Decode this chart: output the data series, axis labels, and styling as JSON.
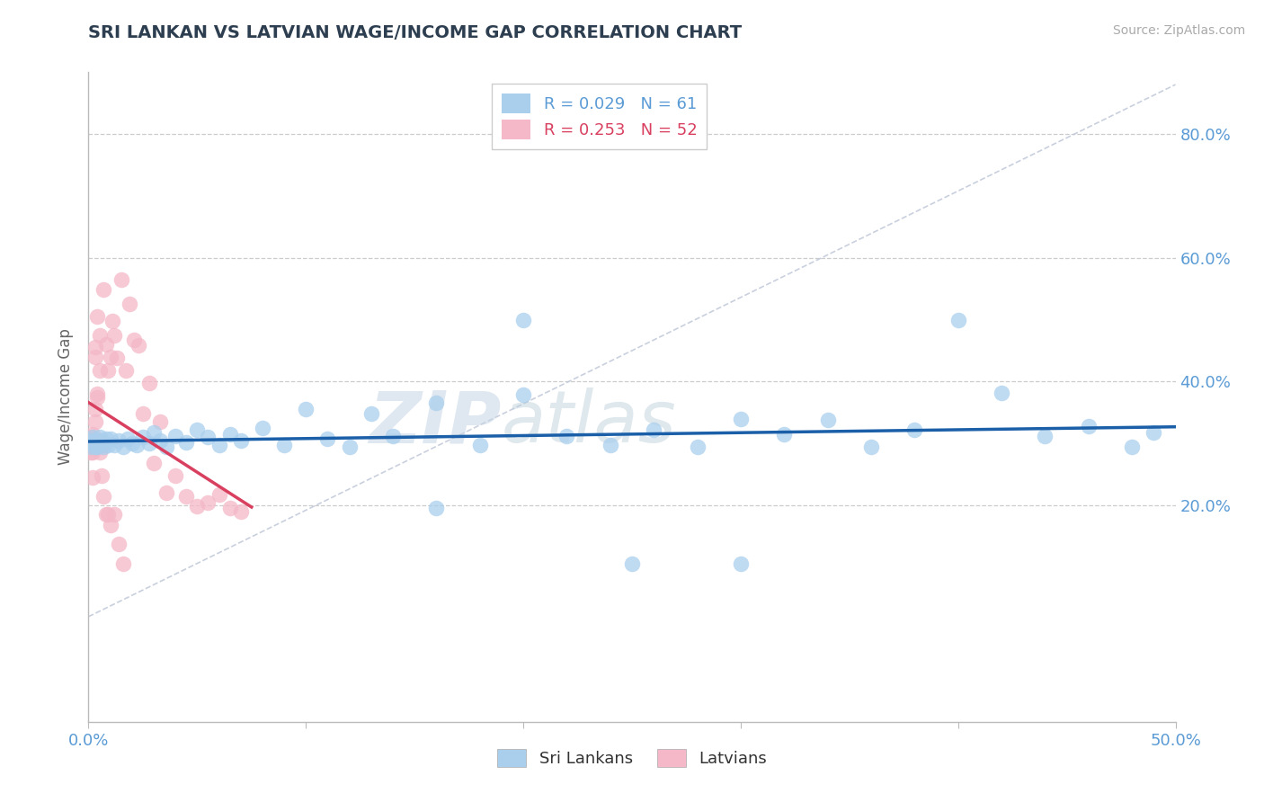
{
  "title": "SRI LANKAN VS LATVIAN WAGE/INCOME GAP CORRELATION CHART",
  "source": "Source: ZipAtlas.com",
  "ylabel": "Wage/Income Gap",
  "xlim": [
    0.0,
    0.5
  ],
  "ylim": [
    -0.15,
    0.9
  ],
  "xticks": [
    0.0,
    0.1,
    0.2,
    0.3,
    0.4,
    0.5
  ],
  "xticklabels": [
    "0.0%",
    "",
    "",
    "",
    "",
    "50.0%"
  ],
  "yticks": [
    0.2,
    0.4,
    0.6,
    0.8
  ],
  "yticklabels": [
    "20.0%",
    "40.0%",
    "60.0%",
    "80.0%"
  ],
  "axis_color": "#5b9bd5",
  "title_color": "#2d3e50",
  "grid_color": "#cccccc",
  "sri_lankans_color": "#aacfed",
  "latvians_color": "#f4b8c8",
  "sri_lankans_line_color": "#1a5fa8",
  "latvians_line_color": "#d94060",
  "watermark_color": "#c8d8ea",
  "legend_r1": "R = 0.029",
  "legend_n1": "N = 61",
  "legend_r2": "R = 0.253",
  "legend_n2": "N = 52",
  "sri_lankans_label": "Sri Lankans",
  "latvians_label": "Latvians",
  "sri_lankans_x": [
    0.001,
    0.001,
    0.002,
    0.002,
    0.003,
    0.003,
    0.004,
    0.004,
    0.005,
    0.006,
    0.007,
    0.008,
    0.009,
    0.01,
    0.012,
    0.014,
    0.016,
    0.018,
    0.02,
    0.022,
    0.025,
    0.028,
    0.03,
    0.033,
    0.036,
    0.04,
    0.045,
    0.05,
    0.055,
    0.06,
    0.065,
    0.07,
    0.08,
    0.09,
    0.1,
    0.11,
    0.12,
    0.13,
    0.14,
    0.16,
    0.18,
    0.2,
    0.22,
    0.24,
    0.26,
    0.28,
    0.3,
    0.32,
    0.34,
    0.36,
    0.38,
    0.4,
    0.42,
    0.44,
    0.46,
    0.48,
    0.49,
    0.2,
    0.3,
    0.16,
    0.25
  ],
  "sri_lankans_y": [
    0.305,
    0.295,
    0.31,
    0.3,
    0.295,
    0.305,
    0.3,
    0.295,
    0.31,
    0.305,
    0.295,
    0.308,
    0.298,
    0.308,
    0.298,
    0.305,
    0.295,
    0.308,
    0.3,
    0.298,
    0.31,
    0.3,
    0.318,
    0.305,
    0.295,
    0.312,
    0.302,
    0.322,
    0.31,
    0.298,
    0.315,
    0.305,
    0.325,
    0.298,
    0.355,
    0.308,
    0.295,
    0.348,
    0.312,
    0.365,
    0.298,
    0.378,
    0.312,
    0.298,
    0.322,
    0.295,
    0.34,
    0.315,
    0.338,
    0.295,
    0.322,
    0.5,
    0.382,
    0.312,
    0.328,
    0.295,
    0.318,
    0.5,
    0.105,
    0.195,
    0.105
  ],
  "latvians_x": [
    0.001,
    0.001,
    0.001,
    0.001,
    0.002,
    0.002,
    0.002,
    0.002,
    0.003,
    0.003,
    0.003,
    0.004,
    0.004,
    0.005,
    0.005,
    0.006,
    0.007,
    0.008,
    0.009,
    0.01,
    0.011,
    0.012,
    0.013,
    0.015,
    0.017,
    0.019,
    0.021,
    0.023,
    0.025,
    0.028,
    0.03,
    0.033,
    0.036,
    0.04,
    0.045,
    0.05,
    0.055,
    0.06,
    0.065,
    0.07,
    0.002,
    0.003,
    0.004,
    0.005,
    0.006,
    0.007,
    0.008,
    0.009,
    0.01,
    0.012,
    0.014,
    0.016
  ],
  "latvians_y": [
    0.305,
    0.295,
    0.31,
    0.285,
    0.305,
    0.295,
    0.315,
    0.285,
    0.455,
    0.44,
    0.355,
    0.505,
    0.38,
    0.475,
    0.418,
    0.298,
    0.548,
    0.46,
    0.418,
    0.44,
    0.498,
    0.475,
    0.438,
    0.565,
    0.418,
    0.525,
    0.468,
    0.458,
    0.348,
    0.398,
    0.268,
    0.335,
    0.22,
    0.248,
    0.215,
    0.198,
    0.205,
    0.218,
    0.195,
    0.19,
    0.245,
    0.335,
    0.375,
    0.285,
    0.248,
    0.215,
    0.185,
    0.185,
    0.168,
    0.185,
    0.138,
    0.105
  ]
}
